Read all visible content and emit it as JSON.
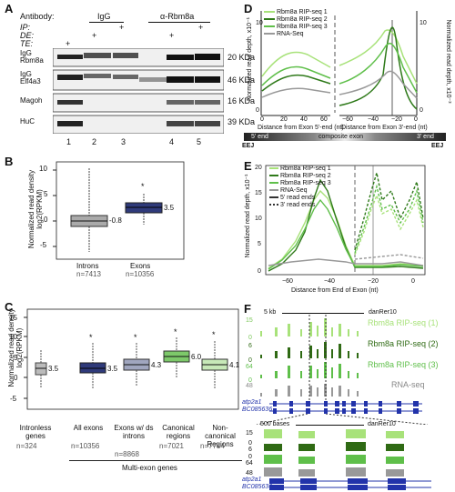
{
  "panels": {
    "A": {
      "label": "A",
      "antibody_label": "Antibody:",
      "antibody_igg": "IgG",
      "antibody_rbm8a": "α-Rbm8a",
      "row_ip": "IP:",
      "row_de": "DE:",
      "row_te": "TE:",
      "plus": "+",
      "blots": [
        {
          "name": "IgG Rbm8a",
          "left_top": "IgG",
          "left_bottom": "Rbm8a",
          "size": "20 KDa"
        },
        {
          "name": "IgG Elf4a3",
          "left_top": "IgG",
          "left_bottom": "Elf4a3",
          "size": "46 KDa"
        },
        {
          "name": "Magoh",
          "left_top": "",
          "left_bottom": "Magoh",
          "size": "16 KDa"
        },
        {
          "name": "HuC",
          "left_top": "",
          "left_bottom": "HuC",
          "size": "39 KDa"
        }
      ],
      "lanes": [
        "1",
        "2",
        "3",
        "4",
        "5"
      ]
    },
    "B": {
      "label": "B",
      "ylabel_line1": "Normalized read density",
      "ylabel_line2": "log2(RPKM)",
      "yticks": [
        "10",
        "5",
        "0",
        "-5"
      ],
      "boxes": [
        {
          "category": "Introns",
          "n": "n=7413",
          "median": "-0.8",
          "color": "#aaaaaa"
        },
        {
          "category": "Exons",
          "n": "n=10356",
          "median": "3.5",
          "color": "#2f3a7a"
        }
      ],
      "star": "*"
    },
    "C": {
      "label": "C",
      "ylabel_line1": "Normalized read density",
      "ylabel_line2": "log2(RPKM)",
      "yticks": [
        "15",
        "10",
        "5",
        "0",
        "-5"
      ],
      "boxes": [
        {
          "category": "Intronless genes",
          "n": "n=324",
          "median": "3.5",
          "color": "#bbbbbb"
        },
        {
          "category": "All exons",
          "n": "n=10356",
          "median": "3.5",
          "color": "#2f3a7a"
        },
        {
          "category": "Exons w/ ds introns",
          "n": "n=8868",
          "median": "4.3",
          "color": "#a0a6bf"
        },
        {
          "category": "Canonical regions",
          "n": "n=7021",
          "median": "6.0",
          "color": "#7dc96a"
        },
        {
          "category": "Non-canonical Regions",
          "n": "n=7744",
          "median": "4.1",
          "color": "#c7e8b8"
        }
      ],
      "group_label": "Multi-exon genes",
      "star": "*"
    },
    "D": {
      "label": "D",
      "ylabel_left": "Normalized read depth, x10⁻¹",
      "ylabel_right": "Normalized read depth, x10⁻³",
      "legend": [
        "Rbm8a RIP-seq 1",
        "Rbm8a RIP-seq 2",
        "Rbm8a RIP-seq 3",
        "RNA-Seq"
      ],
      "xlabel_left": "Distance from Exon 5'-end (nt)",
      "xlabel_right": "Distance from Exon 3'-end (nt)",
      "xticks_left": [
        "0",
        "20",
        "40",
        "60"
      ],
      "xticks_right": [
        "−60",
        "−40",
        "−20",
        "0"
      ],
      "yticks_left": [
        "0",
        "2",
        "4",
        "6",
        "8",
        "10"
      ],
      "yticks_right": [
        "0",
        "2",
        "4",
        "6",
        "8",
        "10"
      ],
      "bar_left": "EEJ",
      "bar_left_text": "5' end",
      "bar_mid": "composite exon",
      "bar_right_text": "3' end",
      "bar_right": "EEJ",
      "colors": [
        "#a8e27a",
        "#2f7a1a",
        "#5fbf4a",
        "#999999"
      ]
    },
    "E": {
      "label": "E",
      "ylabel": "Normalized read depth, x10⁻¹",
      "legend": [
        "Rbm8a RIP-seq 1",
        "Rbm8a RIP-seq 2",
        "Rbm8a RIP-seq 3",
        "RNA-Seq",
        "5' read ends",
        "3' read ends"
      ],
      "xlabel": "Distance from End of Exon (nt)",
      "xticks": [
        "−60",
        "−40",
        "−20",
        "0"
      ],
      "yticks": [
        "0",
        "5",
        "10",
        "15",
        "20"
      ]
    },
    "F": {
      "label": "F",
      "scale_top": "5 kb",
      "genome_top": "danRer10",
      "scale_bottom": "500 bases",
      "genome_bottom": "danRer10",
      "tracks": [
        {
          "name": "Rbm8a RIP-seq (1)",
          "max": "15",
          "color": "#a8e27a"
        },
        {
          "name": "Rbm8a RIP-seq (2)",
          "max": "6",
          "color": "#2f6a14"
        },
        {
          "name": "Rbm8a RIP-seq (3)",
          "max": "64",
          "color": "#5fbf4a"
        },
        {
          "name": "RNA-seq",
          "max": "48",
          "color": "#999999"
        }
      ],
      "track_zero": "0",
      "genes": [
        "atp2a1",
        "BC085636"
      ],
      "bottom_maxes": [
        "15",
        "6",
        "64",
        "48"
      ]
    }
  }
}
